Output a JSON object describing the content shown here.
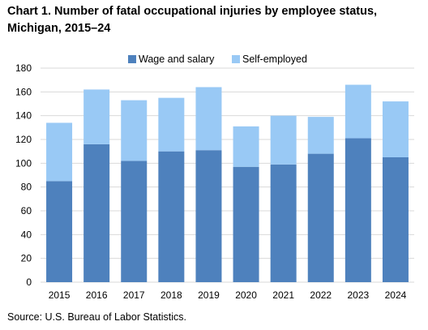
{
  "title": "Chart 1. Number of fatal occupational injuries by employee status, Michigan, 2015–24",
  "source": "Source:  U.S. Bureau  of Labor Statistics.",
  "chart_data": {
    "type": "bar",
    "stacked": true,
    "title": "Chart 1. Number of fatal occupational injuries by employee status, Michigan, 2015–24",
    "xlabel": "",
    "ylabel": "",
    "categories": [
      "2015",
      "2016",
      "2017",
      "2018",
      "2019",
      "2020",
      "2021",
      "2022",
      "2023",
      "2024"
    ],
    "series": [
      {
        "name": "Wage and salary",
        "color": "#4e81bd",
        "values": [
          85,
          116,
          102,
          110,
          111,
          97,
          99,
          108,
          121,
          105
        ]
      },
      {
        "name": "Self-employed",
        "color": "#99c9f5",
        "values": [
          49,
          46,
          51,
          45,
          53,
          34,
          41,
          31,
          45,
          47
        ]
      }
    ],
    "ylim": [
      0,
      180
    ],
    "yticks": [
      0,
      20,
      40,
      60,
      80,
      100,
      120,
      140,
      160,
      180
    ],
    "grid": true,
    "legend": "top"
  }
}
